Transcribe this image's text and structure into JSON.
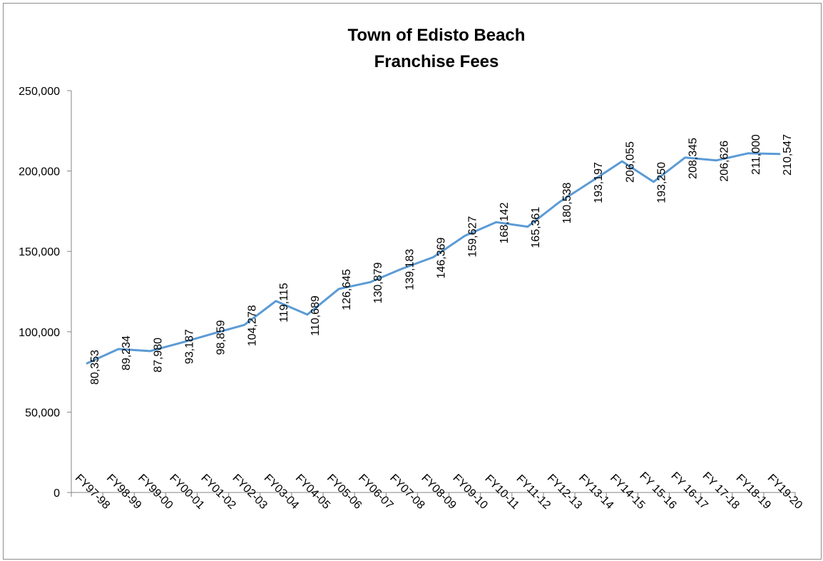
{
  "chart_data": {
    "type": "line",
    "title": "Town of Edisto Beach",
    "subtitle": "Franchise Fees",
    "xlabel": "",
    "ylabel": "",
    "ylim": [
      0,
      250000
    ],
    "yticks": [
      "0",
      "50,000",
      "100,000",
      "150,000",
      "200,000",
      "250,000"
    ],
    "grid": false,
    "legend": "none",
    "line_color": "#5b9bd5",
    "categories": [
      "FY97-98",
      "FY98-99",
      "FY99-00",
      "FY00-01",
      "FY01-02",
      "FY02-03",
      "FY03-04",
      "FY04-05",
      "FY05-06",
      "FY06-07",
      "FY07-08",
      "FY08-09",
      "FY09-10",
      "FY10-11",
      "FY11-12",
      "FY12-13",
      "FY13-14",
      "FY14-15",
      "FY 15-16",
      "FY 16-17",
      "FY 17-18",
      "FY18-19",
      "FY19-20"
    ],
    "series": [
      {
        "values": [
          80353,
          89234,
          87980,
          93187,
          98859,
          104278,
          119115,
          110689,
          126645,
          130879,
          139183,
          146369,
          159627,
          168142,
          165361,
          180538,
          193197,
          206055,
          193250,
          208345,
          206626,
          211000,
          210547
        ],
        "labels": [
          "80,353",
          "89,234",
          "87,980",
          "93,187",
          "98,859",
          "104,278",
          "119,115",
          "110,689",
          "126,645",
          "130,879",
          "139,183",
          "146,369",
          "159,627",
          "168,142",
          "165,361",
          "180,538",
          "193,197",
          "206,055",
          "193,250",
          "208,345",
          "206,626",
          "211,000",
          "210,547"
        ]
      }
    ]
  }
}
